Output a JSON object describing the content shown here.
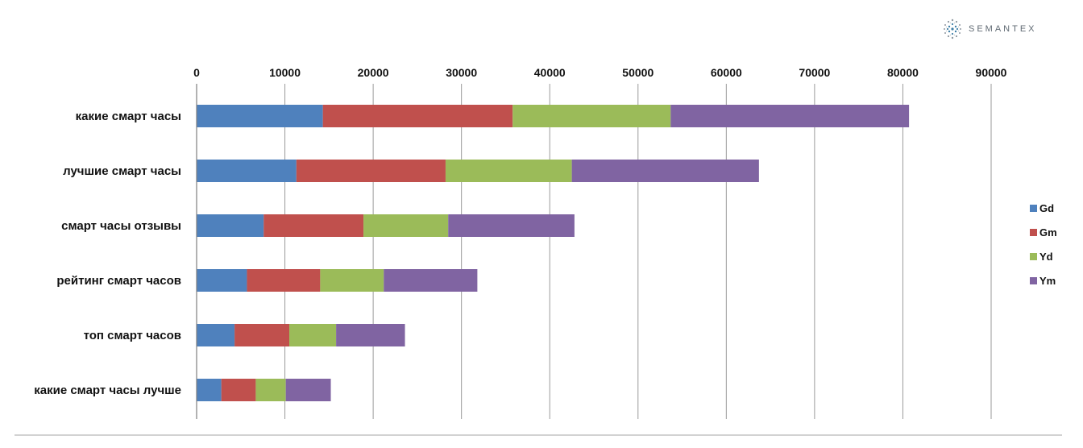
{
  "branding": {
    "text": "SEMANTEX",
    "icon": "dotted-globe-icon"
  },
  "chart_data": {
    "type": "bar",
    "orientation": "horizontal",
    "stacked": true,
    "categories": [
      "какие смарт часы",
      "лучшие смарт часы",
      "смарт часы отзывы",
      "рейтинг смарт часов",
      "топ смарт часов",
      "какие смарт часы лучше"
    ],
    "series": [
      {
        "name": "Gd",
        "color": "#4f81bd",
        "values": [
          14300,
          11300,
          7600,
          5700,
          4300,
          2800
        ]
      },
      {
        "name": "Gm",
        "color": "#c0504d",
        "values": [
          21500,
          16900,
          11300,
          8300,
          6200,
          3900
        ]
      },
      {
        "name": "Yd",
        "color": "#9bbb59",
        "values": [
          17900,
          14300,
          9600,
          7200,
          5300,
          3400
        ]
      },
      {
        "name": "Ym",
        "color": "#8064a2",
        "values": [
          27000,
          21200,
          14300,
          10600,
          7800,
          5100
        ]
      }
    ],
    "xlim": [
      0,
      90000
    ],
    "x_ticks": [
      0,
      10000,
      20000,
      30000,
      40000,
      50000,
      60000,
      70000,
      80000,
      90000
    ],
    "x_axis_position": "top",
    "grid": "vertical",
    "legend_position": "right",
    "title": "",
    "xlabel": "",
    "ylabel": ""
  }
}
